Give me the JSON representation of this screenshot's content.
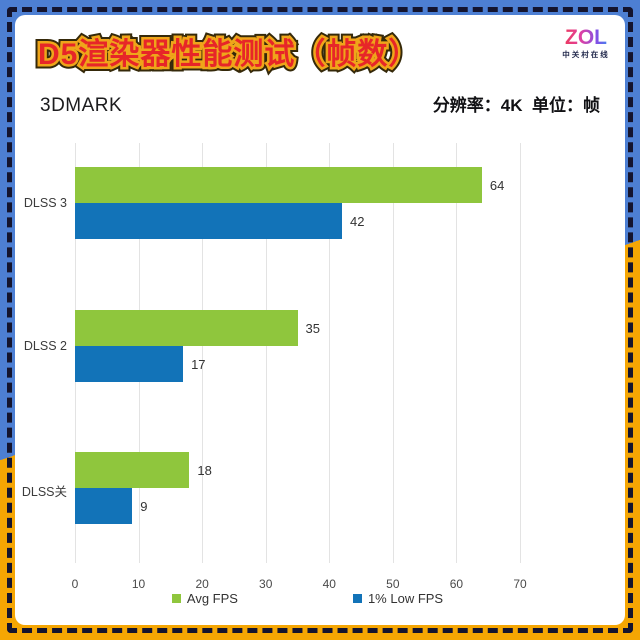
{
  "frame": {
    "bg_blue": "#4d7fd3",
    "bg_yellow": "#f5a603",
    "dash_color": "#14142e"
  },
  "header": {
    "title": "D5渲染器性能测试（帧数）",
    "title_fill_color": "#e72628",
    "title_stroke_color": "#efa51a",
    "logo": {
      "text": "ZOL",
      "caption": "中关村在线"
    },
    "benchmark": "3DMARK",
    "meta": "分辨率：4K  单位：帧"
  },
  "chart_data": {
    "type": "bar",
    "orientation": "horizontal",
    "categories": [
      "DLSS 3",
      "DLSS 2",
      "DLSS关"
    ],
    "series": [
      {
        "name": "Avg FPS",
        "color": "#8fc63d",
        "values": [
          64,
          35,
          18
        ]
      },
      {
        "name": "1% Low FPS",
        "color": "#1273b8",
        "values": [
          42,
          17,
          9
        ]
      }
    ],
    "xlim": [
      0,
      70
    ],
    "xticks": [
      0,
      10,
      20,
      30,
      40,
      50,
      60,
      70
    ],
    "grid": true,
    "gridline_color": "#e3e3e3",
    "value_labels": true,
    "legend_position": "bottom"
  }
}
